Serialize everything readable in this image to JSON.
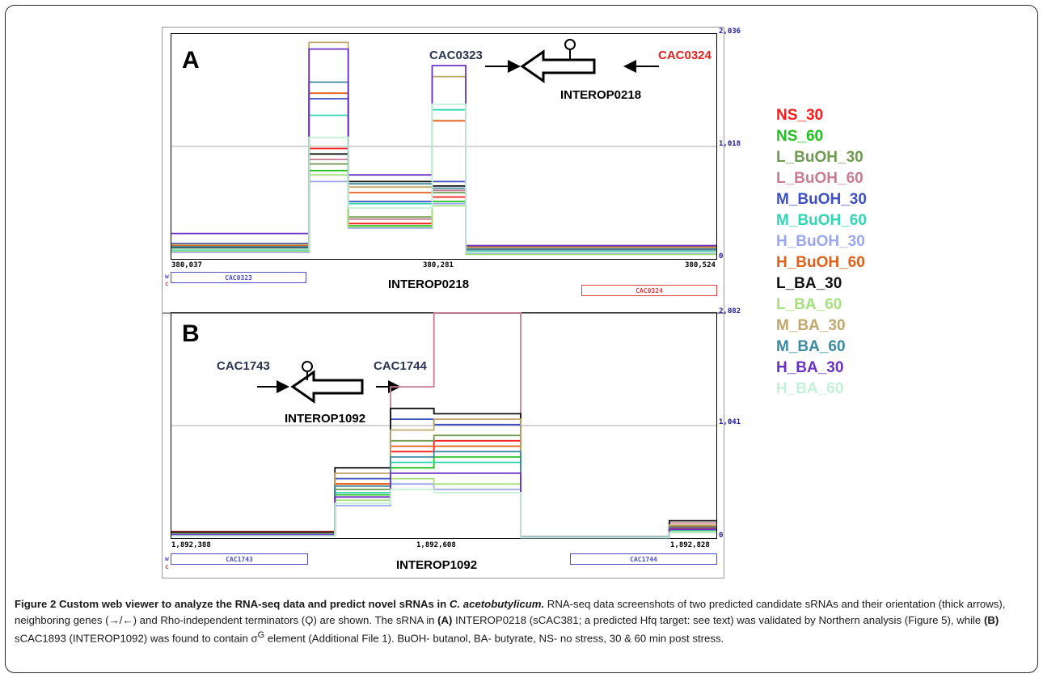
{
  "colors": {
    "NS_30": "#ff1a1a",
    "NS_60": "#22c022",
    "L_BuOH_30": "#6e9a50",
    "L_BuOH_60": "#c87c92",
    "M_BuOH_30": "#3f4fc0",
    "M_BuOH_60": "#33d6b4",
    "H_BuOH_30": "#9aa6ee",
    "H_BuOH_60": "#e0601a",
    "L_BA_30": "#111111",
    "L_BA_60": "#a6e07c",
    "M_BA_30": "#c0a86c",
    "M_BA_60": "#3a8aa0",
    "H_BA_30": "#6a32c4",
    "H_BA_60": "#c4f0da",
    "gene_w": "#4f4fc8",
    "gene_c": "#e04040",
    "axis_label": "#1a1aa0",
    "annotation": "#2b3550"
  },
  "legend": [
    {
      "key": "NS_30",
      "label": "NS_30"
    },
    {
      "key": "NS_60",
      "label": "NS_60"
    },
    {
      "key": "L_BuOH_30",
      "label": "L_BuOH_30"
    },
    {
      "key": "L_BuOH_60",
      "label": "L_BuOH_60"
    },
    {
      "key": "M_BuOH_30",
      "label": "M_BuOH_30"
    },
    {
      "key": "M_BuOH_60",
      "label": "M_BuOH_60"
    },
    {
      "key": "H_BuOH_30",
      "label": "H_BuOH_30"
    },
    {
      "key": "H_BuOH_60",
      "label": "H_BuOH_60"
    },
    {
      "key": "L_BA_30",
      "label": "L_BA_30"
    },
    {
      "key": "L_BA_60",
      "label": "L_BA_60"
    },
    {
      "key": "M_BA_30",
      "label": "M_BA_30"
    },
    {
      "key": "M_BA_60",
      "label": "M_BA_60"
    },
    {
      "key": "H_BA_30",
      "label": "H_BA_30"
    },
    {
      "key": "H_BA_60",
      "label": "H_BA_60"
    }
  ],
  "panelA": {
    "letter": "A",
    "gene_left": "CAC0323",
    "gene_right": "CAC0324",
    "interop": "INTEROP0218",
    "x_ticks": [
      "380,037",
      "380,281",
      "380,524"
    ],
    "y_ticks": [
      "2,036",
      "1,018",
      "0"
    ],
    "strand_w": "w",
    "strand_c": "c",
    "genebox_left": "CAC0323",
    "genebox_right": "CAC0324",
    "bottom_label": "INTEROP0218",
    "chart_data": {
      "type": "line",
      "x_range": [
        380037,
        380524
      ],
      "ylim": [
        0,
        2036
      ],
      "segments": [
        [
          380037,
          380160
        ],
        [
          380160,
          380195
        ],
        [
          380195,
          380270
        ],
        [
          380270,
          380300
        ],
        [
          380300,
          380524
        ]
      ],
      "series": [
        {
          "name": "NS_30",
          "values": [
            90,
            1000,
            320,
            560,
            70
          ]
        },
        {
          "name": "NS_60",
          "values": [
            70,
            800,
            300,
            520,
            50
          ]
        },
        {
          "name": "L_BuOH_30",
          "values": [
            110,
            860,
            380,
            600,
            90
          ]
        },
        {
          "name": "L_BuOH_60",
          "values": [
            100,
            900,
            360,
            620,
            80
          ]
        },
        {
          "name": "M_BuOH_30",
          "values": [
            140,
            1450,
            520,
            700,
            120
          ]
        },
        {
          "name": "M_BuOH_60",
          "values": [
            80,
            1300,
            500,
            1350,
            70
          ]
        },
        {
          "name": "H_BuOH_30",
          "values": [
            60,
            700,
            280,
            500,
            50
          ]
        },
        {
          "name": "H_BuOH_60",
          "values": [
            120,
            1500,
            600,
            1250,
            110
          ]
        },
        {
          "name": "L_BA_30",
          "values": [
            100,
            950,
            700,
            660,
            90
          ]
        },
        {
          "name": "L_BA_60",
          "values": [
            70,
            760,
            290,
            480,
            40
          ]
        },
        {
          "name": "M_BA_30",
          "values": [
            130,
            1960,
            650,
            1650,
            100
          ]
        },
        {
          "name": "M_BA_60",
          "values": [
            110,
            1600,
            680,
            640,
            90
          ]
        },
        {
          "name": "H_BA_30",
          "values": [
            230,
            1900,
            760,
            1750,
            120
          ]
        },
        {
          "name": "H_BA_60",
          "values": [
            90,
            1100,
            460,
            1400,
            60
          ]
        }
      ]
    }
  },
  "panelB": {
    "letter": "B",
    "gene_left": "CAC1743",
    "gene_right": "CAC1744",
    "interop": "INTEROP1092",
    "x_ticks": [
      "1,892,388",
      "1,892,608",
      "1,892,828"
    ],
    "y_ticks": [
      "2,082",
      "1,041",
      "0"
    ],
    "strand_w": "w",
    "strand_c": "c",
    "genebox_left": "CAC1743",
    "genebox_right": "CAC1744",
    "bottom_label": "INTEROP1092",
    "chart_data": {
      "type": "line",
      "x_range": [
        1892388,
        1892828
      ],
      "ylim": [
        0,
        2082
      ],
      "segments": [
        [
          1892388,
          1892520
        ],
        [
          1892520,
          1892565
        ],
        [
          1892565,
          1892600
        ],
        [
          1892600,
          1892670
        ],
        [
          1892670,
          1892790
        ],
        [
          1892790,
          1892828
        ]
      ],
      "series": [
        {
          "name": "NS_30",
          "values": [
            60,
            500,
            800,
            900,
            10,
            90
          ]
        },
        {
          "name": "NS_60",
          "values": [
            30,
            400,
            650,
            750,
            10,
            60
          ]
        },
        {
          "name": "L_BuOH_30",
          "values": [
            40,
            450,
            900,
            950,
            10,
            80
          ]
        },
        {
          "name": "L_BuOH_60",
          "values": [
            50,
            600,
            1400,
            2082,
            10,
            140
          ]
        },
        {
          "name": "M_BuOH_30",
          "values": [
            35,
            550,
            1100,
            1050,
            10,
            100
          ]
        },
        {
          "name": "M_BuOH_60",
          "values": [
            30,
            420,
            700,
            700,
            10,
            70
          ]
        },
        {
          "name": "H_BuOH_30",
          "values": [
            20,
            300,
            500,
            450,
            5,
            50
          ]
        },
        {
          "name": "H_BuOH_60",
          "values": [
            45,
            500,
            850,
            850,
            10,
            110
          ]
        },
        {
          "name": "L_BA_30",
          "values": [
            55,
            650,
            1200,
            1150,
            10,
            160
          ]
        },
        {
          "name": "L_BA_60",
          "values": [
            25,
            350,
            550,
            500,
            5,
            60
          ]
        },
        {
          "name": "M_BA_30",
          "values": [
            40,
            600,
            1000,
            1100,
            10,
            120
          ]
        },
        {
          "name": "M_BA_60",
          "values": [
            35,
            480,
            750,
            800,
            10,
            100
          ]
        },
        {
          "name": "H_BA_30",
          "values": [
            30,
            380,
            600,
            600,
            5,
            80
          ]
        },
        {
          "name": "H_BA_60",
          "values": [
            20,
            320,
            450,
            420,
            5,
            50
          ]
        }
      ]
    }
  },
  "caption": {
    "fig": "Figure 2",
    "title": " Custom web viewer to analyze the RNA-seq data and predict novel sRNAs in ",
    "species": "C. acetobutylicum.",
    "body1": " RNA-seq data screenshots of two predicted candidate sRNAs and their orientation (thick arrows), neighboring genes (→/←) and Rho-independent terminators (Ϙ) are shown. The sRNA in ",
    "refA": "(A)",
    "body2": " INTEROP0218 (sCAC381; a predicted Hfq target: see text) was validated by Northern analysis (Figure 5), while ",
    "refB": "(B)",
    "body3": " sCAC1893 (INTEROP1092) was found to contain σ",
    "sup": "G",
    "body4": " element (Additional File 1). BuOH- butanol, BA- butyrate, NS- no stress, 30 & 60 min post stress."
  }
}
